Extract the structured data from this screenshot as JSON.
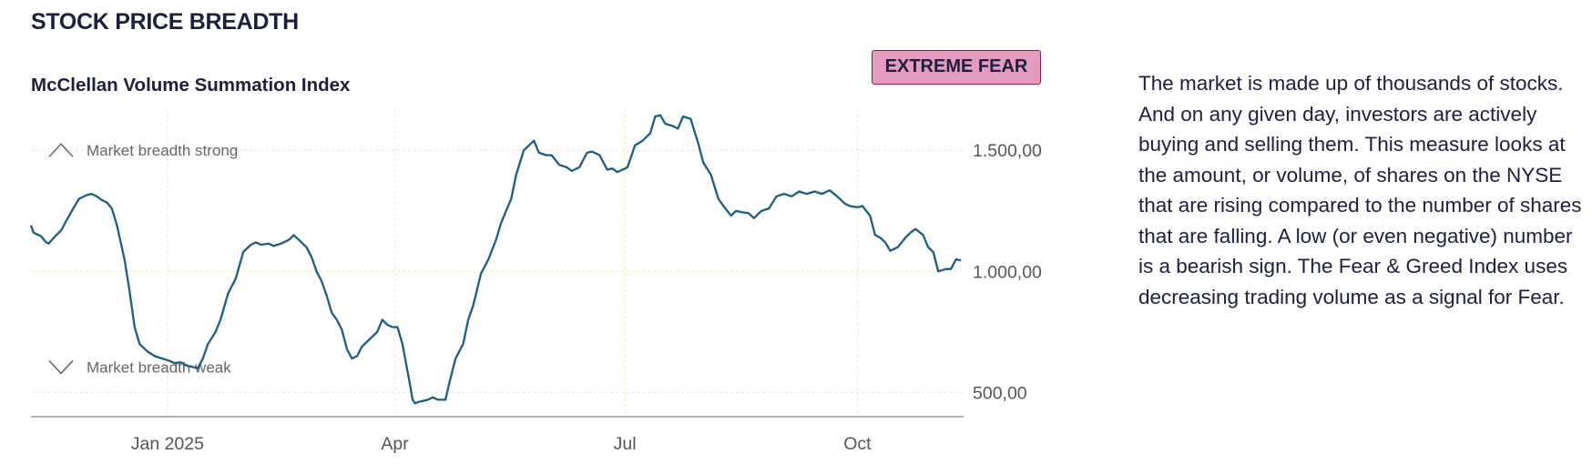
{
  "section": {
    "title": "STOCK PRICE BREADTH"
  },
  "chart_title": "McClellan Volume Summation Index",
  "rating_badge": "EXTREME FEAR",
  "description": "The market is made up of thousands of stocks. And on any given day, investors are actively buying and selling them. This measure looks at the amount, or volume, of shares on the NYSE that are rising compared to the number of shares that are falling. A low (or even negative) number is a bearish sign. The Fear & Greed Index uses decreasing trading volume as a signal for Fear.",
  "colors": {
    "line": "#1a5f80",
    "badge_bg": "#e39bc0",
    "badge_border": "#8a1f55",
    "text": "#1c1f3f",
    "grid": "#f1e9b6",
    "axis": "#9a9a9a"
  },
  "chart_data": {
    "type": "line",
    "title": "McClellan Volume Summation Index",
    "xlabel": "",
    "ylabel": "",
    "x_ticks": [
      "Jan 2025",
      "Apr",
      "Jul",
      "Oct"
    ],
    "x_tick_positions": [
      "2025-01-01",
      "2025-04-01",
      "2025-07-01",
      "2025-10-01"
    ],
    "xlim": [
      "2024-11-08",
      "2025-11-12"
    ],
    "y_ticks": [
      "500,00",
      "1.000,00",
      "1.500,00"
    ],
    "y_tick_values": [
      500,
      1000,
      1500
    ],
    "ylim": [
      400,
      1670
    ],
    "grid": true,
    "annotations": [
      {
        "text": "Market breadth strong",
        "icon": "chevron-up-icon",
        "y": 1500
      },
      {
        "text": "Market breadth weak",
        "icon": "chevron-down-icon",
        "y": 605
      }
    ],
    "series": [
      {
        "points": [
          [
            "2024-11-08",
            1190
          ],
          [
            "2024-11-09",
            1160
          ],
          [
            "2024-11-12",
            1145
          ],
          [
            "2024-11-14",
            1120
          ],
          [
            "2024-11-15",
            1115
          ],
          [
            "2024-11-18",
            1150
          ],
          [
            "2024-11-20",
            1170
          ],
          [
            "2024-11-22",
            1210
          ],
          [
            "2024-11-25",
            1265
          ],
          [
            "2024-11-27",
            1300
          ],
          [
            "2024-11-30",
            1315
          ],
          [
            "2024-12-02",
            1320
          ],
          [
            "2024-12-04",
            1310
          ],
          [
            "2024-12-06",
            1295
          ],
          [
            "2024-12-08",
            1285
          ],
          [
            "2024-12-10",
            1260
          ],
          [
            "2024-12-12",
            1190
          ],
          [
            "2024-12-15",
            1050
          ],
          [
            "2024-12-17",
            920
          ],
          [
            "2024-12-19",
            770
          ],
          [
            "2024-12-21",
            700
          ],
          [
            "2024-12-24",
            670
          ],
          [
            "2024-12-27",
            650
          ],
          [
            "2024-12-30",
            640
          ],
          [
            "2025-01-02",
            630
          ],
          [
            "2025-01-04",
            620
          ],
          [
            "2025-01-06",
            625
          ],
          [
            "2025-01-09",
            610
          ],
          [
            "2025-01-11",
            605
          ],
          [
            "2025-01-13",
            600
          ],
          [
            "2025-01-15",
            640
          ],
          [
            "2025-01-17",
            700
          ],
          [
            "2025-01-20",
            750
          ],
          [
            "2025-01-22",
            800
          ],
          [
            "2025-01-25",
            910
          ],
          [
            "2025-01-28",
            970
          ],
          [
            "2025-01-31",
            1080
          ],
          [
            "2025-02-03",
            1110
          ],
          [
            "2025-02-05",
            1120
          ],
          [
            "2025-02-07",
            1110
          ],
          [
            "2025-02-10",
            1115
          ],
          [
            "2025-02-12",
            1105
          ],
          [
            "2025-02-15",
            1115
          ],
          [
            "2025-02-18",
            1130
          ],
          [
            "2025-02-20",
            1150
          ],
          [
            "2025-02-22",
            1130
          ],
          [
            "2025-02-25",
            1100
          ],
          [
            "2025-02-27",
            1060
          ],
          [
            "2025-03-01",
            1000
          ],
          [
            "2025-03-03",
            960
          ],
          [
            "2025-03-05",
            900
          ],
          [
            "2025-03-07",
            830
          ],
          [
            "2025-03-09",
            800
          ],
          [
            "2025-03-11",
            760
          ],
          [
            "2025-03-13",
            680
          ],
          [
            "2025-03-15",
            640
          ],
          [
            "2025-03-17",
            650
          ],
          [
            "2025-03-19",
            690
          ],
          [
            "2025-03-21",
            710
          ],
          [
            "2025-03-23",
            730
          ],
          [
            "2025-03-25",
            750
          ],
          [
            "2025-03-27",
            800
          ],
          [
            "2025-03-29",
            780
          ],
          [
            "2025-03-31",
            770
          ],
          [
            "2025-04-02",
            770
          ],
          [
            "2025-04-04",
            700
          ],
          [
            "2025-04-07",
            530
          ],
          [
            "2025-04-08",
            470
          ],
          [
            "2025-04-09",
            455
          ],
          [
            "2025-04-10",
            460
          ],
          [
            "2025-04-12",
            465
          ],
          [
            "2025-04-14",
            470
          ],
          [
            "2025-04-16",
            480
          ],
          [
            "2025-04-18",
            470
          ],
          [
            "2025-04-21",
            470
          ],
          [
            "2025-04-23",
            560
          ],
          [
            "2025-04-25",
            640
          ],
          [
            "2025-04-28",
            700
          ],
          [
            "2025-04-30",
            800
          ],
          [
            "2025-05-02",
            860
          ],
          [
            "2025-05-05",
            990
          ],
          [
            "2025-05-08",
            1050
          ],
          [
            "2025-05-11",
            1130
          ],
          [
            "2025-05-13",
            1200
          ],
          [
            "2025-05-15",
            1250
          ],
          [
            "2025-05-17",
            1300
          ],
          [
            "2025-05-19",
            1400
          ],
          [
            "2025-05-22",
            1500
          ],
          [
            "2025-05-24",
            1520
          ],
          [
            "2025-05-26",
            1540
          ],
          [
            "2025-05-28",
            1490
          ],
          [
            "2025-05-31",
            1480
          ],
          [
            "2025-06-02",
            1480
          ],
          [
            "2025-06-05",
            1440
          ],
          [
            "2025-06-08",
            1430
          ],
          [
            "2025-06-10",
            1415
          ],
          [
            "2025-06-13",
            1430
          ],
          [
            "2025-06-16",
            1490
          ],
          [
            "2025-06-18",
            1495
          ],
          [
            "2025-06-21",
            1480
          ],
          [
            "2025-06-24",
            1420
          ],
          [
            "2025-06-26",
            1425
          ],
          [
            "2025-06-28",
            1410
          ],
          [
            "2025-06-30",
            1420
          ],
          [
            "2025-07-02",
            1430
          ],
          [
            "2025-07-05",
            1520
          ],
          [
            "2025-07-08",
            1540
          ],
          [
            "2025-07-11",
            1570
          ],
          [
            "2025-07-13",
            1640
          ],
          [
            "2025-07-15",
            1645
          ],
          [
            "2025-07-17",
            1610
          ],
          [
            "2025-07-20",
            1600
          ],
          [
            "2025-07-22",
            1590
          ],
          [
            "2025-07-24",
            1640
          ],
          [
            "2025-07-27",
            1630
          ],
          [
            "2025-07-30",
            1530
          ],
          [
            "2025-08-01",
            1450
          ],
          [
            "2025-08-04",
            1400
          ],
          [
            "2025-08-07",
            1300
          ],
          [
            "2025-08-09",
            1270
          ],
          [
            "2025-08-12",
            1230
          ],
          [
            "2025-08-14",
            1250
          ],
          [
            "2025-08-16",
            1245
          ],
          [
            "2025-08-19",
            1240
          ],
          [
            "2025-08-21",
            1220
          ],
          [
            "2025-08-24",
            1250
          ],
          [
            "2025-08-27",
            1260
          ],
          [
            "2025-08-30",
            1310
          ],
          [
            "2025-09-02",
            1320
          ],
          [
            "2025-09-05",
            1310
          ],
          [
            "2025-09-08",
            1330
          ],
          [
            "2025-09-11",
            1320
          ],
          [
            "2025-09-14",
            1330
          ],
          [
            "2025-09-17",
            1320
          ],
          [
            "2025-09-20",
            1335
          ],
          [
            "2025-09-23",
            1310
          ],
          [
            "2025-09-26",
            1280
          ],
          [
            "2025-09-28",
            1270
          ],
          [
            "2025-10-01",
            1265
          ],
          [
            "2025-10-03",
            1270
          ],
          [
            "2025-10-06",
            1230
          ],
          [
            "2025-10-08",
            1150
          ],
          [
            "2025-10-10",
            1140
          ],
          [
            "2025-10-12",
            1120
          ],
          [
            "2025-10-14",
            1085
          ],
          [
            "2025-10-17",
            1100
          ],
          [
            "2025-10-20",
            1140
          ],
          [
            "2025-10-22",
            1160
          ],
          [
            "2025-10-24",
            1175
          ],
          [
            "2025-10-27",
            1150
          ],
          [
            "2025-10-29",
            1100
          ],
          [
            "2025-10-31",
            1080
          ],
          [
            "2025-11-02",
            1000
          ],
          [
            "2025-11-05",
            1010
          ],
          [
            "2025-11-07",
            1010
          ],
          [
            "2025-11-09",
            1050
          ],
          [
            "2025-11-11",
            1045
          ]
        ]
      }
    ]
  }
}
